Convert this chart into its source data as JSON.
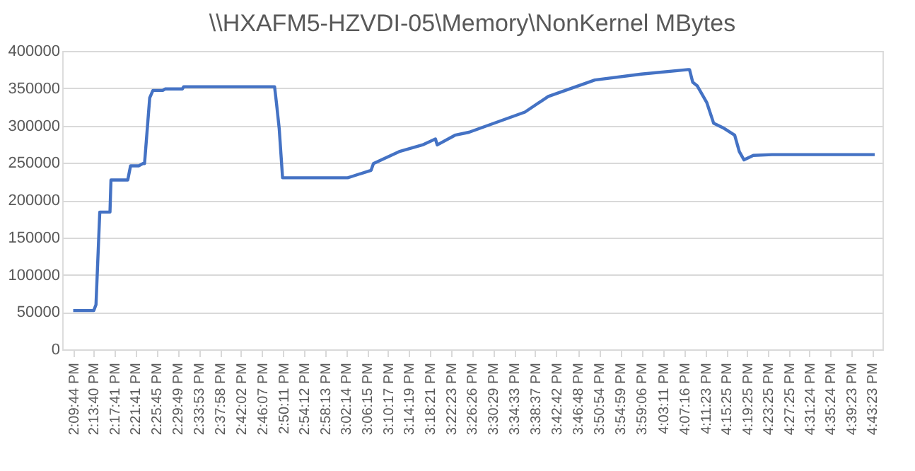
{
  "chart_data": {
    "type": "line",
    "title": "\\\\HXAFM5-HZVDI-05\\Memory\\NonKernel  MBytes",
    "x": [
      14.1622,
      14.2281,
      14.2353,
      14.2474,
      14.2801,
      14.2833,
      14.3371,
      14.3461,
      14.3729,
      14.3851,
      14.3909,
      14.4075,
      14.4178,
      14.4492,
      14.4568,
      14.512,
      14.5164,
      14.8079,
      14.8137,
      14.8227,
      14.8335,
      15.0424,
      15.0577,
      15.1173,
      15.1249,
      15.207,
      15.2819,
      15.3236,
      15.3294,
      15.3863,
      15.4312,
      15.6105,
      15.6854,
      15.8347,
      15.9841,
      16.1338,
      16.1383,
      16.1486,
      16.1634,
      16.1935,
      16.2158,
      16.2459,
      16.2831,
      16.298,
      16.3131,
      16.3428,
      16.4029,
      16.732
    ],
    "series": [
      {
        "color": "#4472c4",
        "values": [
          52000,
          52000,
          60000,
          184000,
          184000,
          227000,
          227000,
          246000,
          246000,
          249000,
          249000,
          337000,
          347000,
          347000,
          349000,
          349000,
          352000,
          352000,
          331000,
          296000,
          230000,
          230000,
          232000,
          240000,
          249000,
          265000,
          274000,
          282000,
          274000,
          287000,
          291000,
          318000,
          339000,
          361000,
          369000,
          375000,
          375000,
          358000,
          353000,
          331000,
          303000,
          297000,
          287000,
          265000,
          254000,
          260000,
          261000,
          261000
        ]
      }
    ],
    "xlim": [
      14.127,
      16.757
    ],
    "xticks": [
      {
        "value": 14.1622,
        "label": "2:09:44 PM"
      },
      {
        "value": 14.2278,
        "label": "2:13:40 PM"
      },
      {
        "value": 14.2947,
        "label": "2:17:41 PM"
      },
      {
        "value": 14.3614,
        "label": "2:21:41 PM"
      },
      {
        "value": 14.4292,
        "label": "2:25:45 PM"
      },
      {
        "value": 14.4969,
        "label": "2:29:49 PM"
      },
      {
        "value": 14.5647,
        "label": "2:33:53 PM"
      },
      {
        "value": 14.6328,
        "label": "2:37:58 PM"
      },
      {
        "value": 14.7006,
        "label": "2:42:02 PM"
      },
      {
        "value": 14.7686,
        "label": "2:46:07 PM"
      },
      {
        "value": 14.8364,
        "label": "2:50:11 PM"
      },
      {
        "value": 14.9033,
        "label": "2:54:12 PM"
      },
      {
        "value": 14.9703,
        "label": "2:58:13 PM"
      },
      {
        "value": 15.0372,
        "label": "3:02:14 PM"
      },
      {
        "value": 15.1042,
        "label": "3:06:15 PM"
      },
      {
        "value": 15.1714,
        "label": "3:10:17 PM"
      },
      {
        "value": 15.2386,
        "label": "3:14:19 PM"
      },
      {
        "value": 15.3058,
        "label": "3:18:21 PM"
      },
      {
        "value": 15.3731,
        "label": "3:22:23 PM"
      },
      {
        "value": 15.4406,
        "label": "3:26:26 PM"
      },
      {
        "value": 15.5081,
        "label": "3:30:29 PM"
      },
      {
        "value": 15.5758,
        "label": "3:34:33 PM"
      },
      {
        "value": 15.6436,
        "label": "3:38:37 PM"
      },
      {
        "value": 15.7117,
        "label": "3:42:42 PM"
      },
      {
        "value": 15.78,
        "label": "3:46:48 PM"
      },
      {
        "value": 15.8483,
        "label": "3:50:54 PM"
      },
      {
        "value": 15.9164,
        "label": "3:54:59 PM"
      },
      {
        "value": 15.985,
        "label": "3:59:06 PM"
      },
      {
        "value": 16.0531,
        "label": "4:03:11 PM"
      },
      {
        "value": 16.1211,
        "label": "4:07:16 PM"
      },
      {
        "value": 16.1897,
        "label": "4:11:23 PM"
      },
      {
        "value": 16.2569,
        "label": "4:15:25 PM"
      },
      {
        "value": 16.3236,
        "label": "4:19:25 PM"
      },
      {
        "value": 16.3903,
        "label": "4:23:25 PM"
      },
      {
        "value": 16.4569,
        "label": "4:27:25 PM"
      },
      {
        "value": 16.5233,
        "label": "4:31:24 PM"
      },
      {
        "value": 16.59,
        "label": "4:35:24 PM"
      },
      {
        "value": 16.6564,
        "label": "4:39:23 PM"
      },
      {
        "value": 16.7231,
        "label": "4:43:23 PM"
      }
    ],
    "ylim": [
      0,
      400000
    ],
    "yticks": [
      0,
      50000,
      100000,
      150000,
      200000,
      250000,
      300000,
      350000,
      400000
    ],
    "grid": "y",
    "legend": false,
    "marker": "none",
    "line_style": "solid"
  }
}
